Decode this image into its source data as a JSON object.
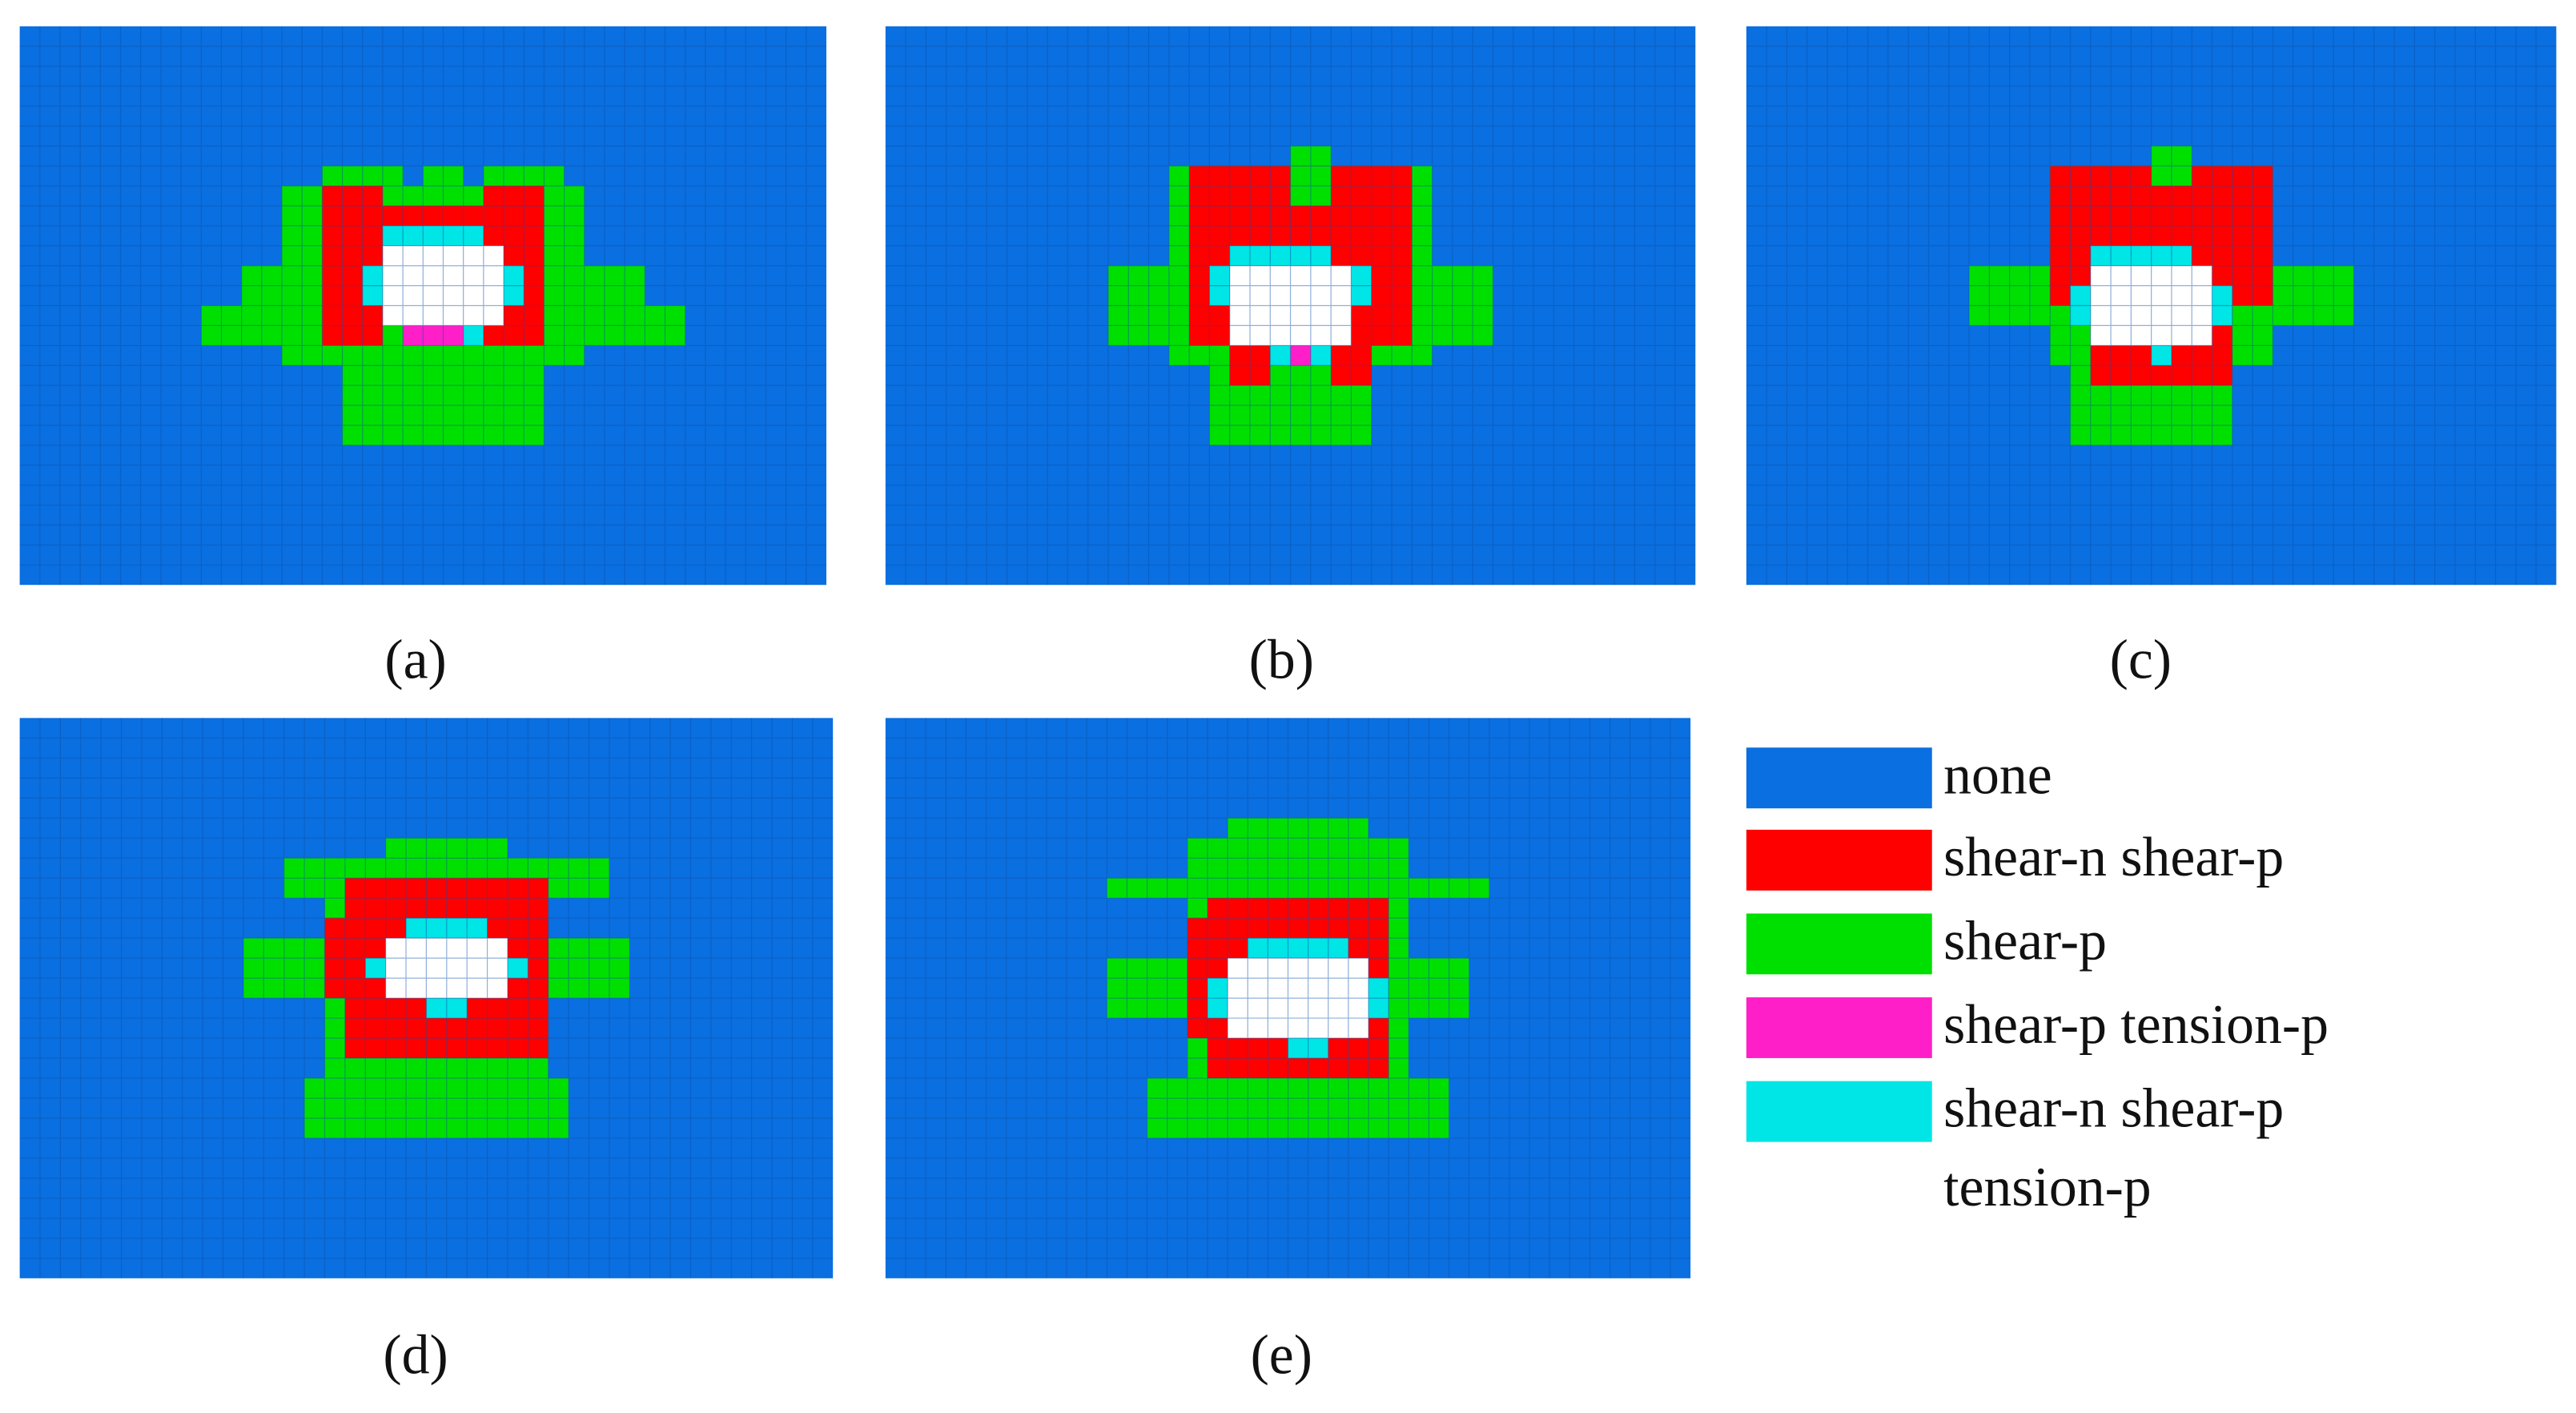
{
  "labels": [
    "(a)",
    "(b)",
    "(c)",
    "(d)",
    "(e)"
  ],
  "legend": {
    "items": [
      {
        "color": "#0a6fe0",
        "lines": [
          "none"
        ]
      },
      {
        "color": "#ff0000",
        "lines": [
          "shear-n shear-p"
        ]
      },
      {
        "color": "#00e000",
        "lines": [
          "shear-p"
        ]
      },
      {
        "color": "#ff1fc8",
        "lines": [
          "shear-p tension-p"
        ]
      },
      {
        "color": "#00e5e5",
        "lines": [
          "shear-n shear-p",
          "tension-p"
        ]
      }
    ]
  }
}
